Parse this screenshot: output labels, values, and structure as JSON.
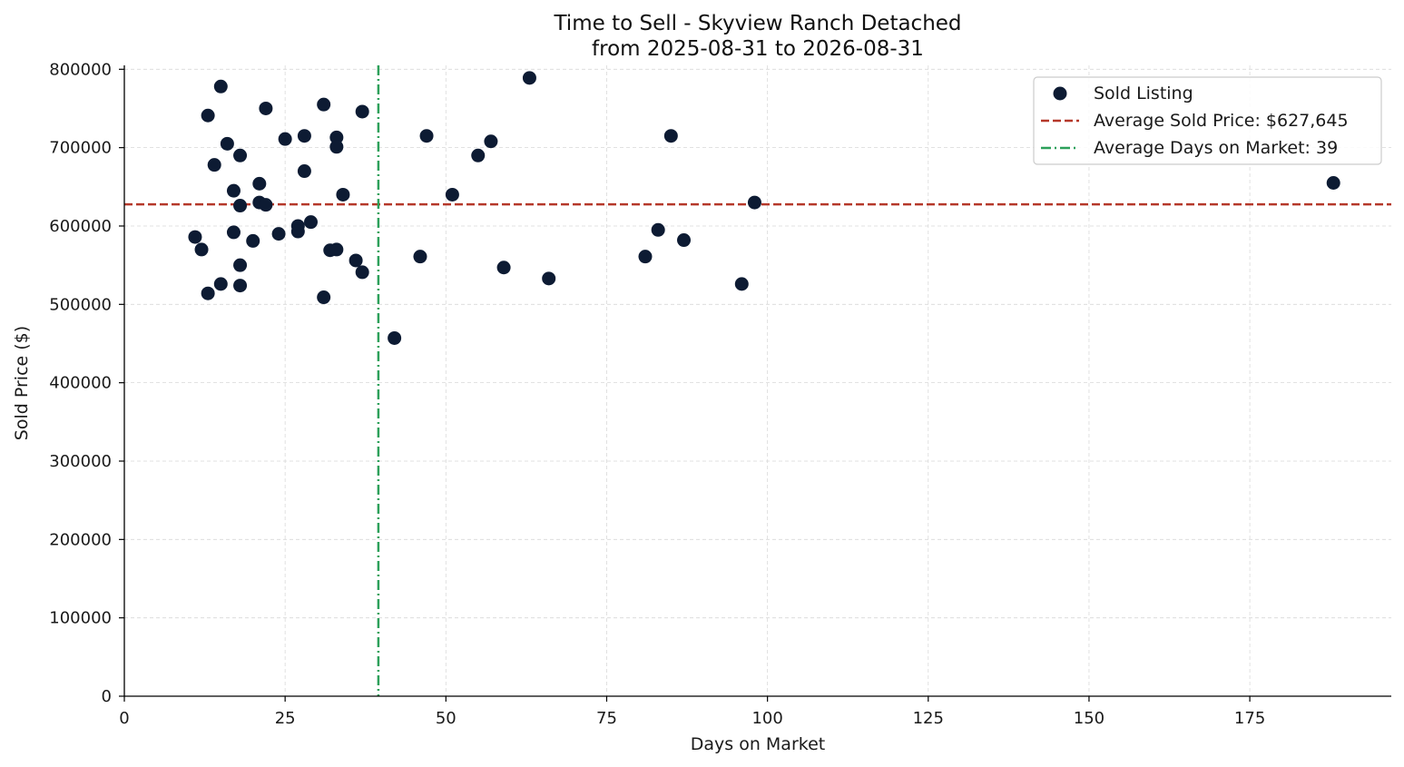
{
  "chart_data": {
    "type": "scatter",
    "title": "Time to Sell - Skyview Ranch Detached",
    "subtitle": "from 2025-08-31 to 2026-08-31",
    "xlabel": "Days on Market",
    "ylabel": "Sold Price ($)",
    "xlim": [
      0,
      197
    ],
    "ylim": [
      0,
      805000
    ],
    "xticks": [
      0,
      25,
      50,
      75,
      100,
      125,
      150,
      175
    ],
    "yticks": [
      0,
      100000,
      200000,
      300000,
      400000,
      500000,
      600000,
      700000,
      800000
    ],
    "grid": true,
    "legend_position": "top-right",
    "colors": {
      "points": "#0d1b33",
      "avg_price_line": "#b5382a",
      "avg_days_line": "#2ca05a",
      "grid": "#d9d9d9",
      "axis": "#000000"
    },
    "series": [
      {
        "name": "Sold Listing",
        "points": [
          [
            11,
            586000
          ],
          [
            12,
            570000
          ],
          [
            13,
            741000
          ],
          [
            13,
            514000
          ],
          [
            14,
            678000
          ],
          [
            15,
            778000
          ],
          [
            15,
            526000
          ],
          [
            16,
            705000
          ],
          [
            17,
            645000
          ],
          [
            17,
            592000
          ],
          [
            18,
            690000
          ],
          [
            18,
            626000
          ],
          [
            18,
            550000
          ],
          [
            18,
            524000
          ],
          [
            20,
            581000
          ],
          [
            21,
            654000
          ],
          [
            21,
            630000
          ],
          [
            22,
            750000
          ],
          [
            22,
            627000
          ],
          [
            24,
            590000
          ],
          [
            25,
            711000
          ],
          [
            27,
            600000
          ],
          [
            27,
            593000
          ],
          [
            28,
            715000
          ],
          [
            28,
            670000
          ],
          [
            29,
            605000
          ],
          [
            31,
            755000
          ],
          [
            31,
            509000
          ],
          [
            32,
            569000
          ],
          [
            33,
            713000
          ],
          [
            33,
            701000
          ],
          [
            33,
            570000
          ],
          [
            34,
            640000
          ],
          [
            36,
            556000
          ],
          [
            37,
            746000
          ],
          [
            37,
            541000
          ],
          [
            42,
            457000
          ],
          [
            46,
            561000
          ],
          [
            47,
            715000
          ],
          [
            51,
            640000
          ],
          [
            55,
            690000
          ],
          [
            57,
            708000
          ],
          [
            59,
            547000
          ],
          [
            63,
            789000
          ],
          [
            66,
            533000
          ],
          [
            81,
            561000
          ],
          [
            83,
            595000
          ],
          [
            85,
            715000
          ],
          [
            87,
            582000
          ],
          [
            96,
            526000
          ],
          [
            98,
            630000
          ],
          [
            188,
            655000
          ]
        ]
      }
    ],
    "reference_lines": [
      {
        "name": "Average Sold Price: $627,645",
        "orientation": "horizontal",
        "value": 627645,
        "style": "dashed"
      },
      {
        "name": "Average Days on Market: 39",
        "orientation": "vertical",
        "value": 39.5,
        "style": "dashdot"
      }
    ]
  }
}
